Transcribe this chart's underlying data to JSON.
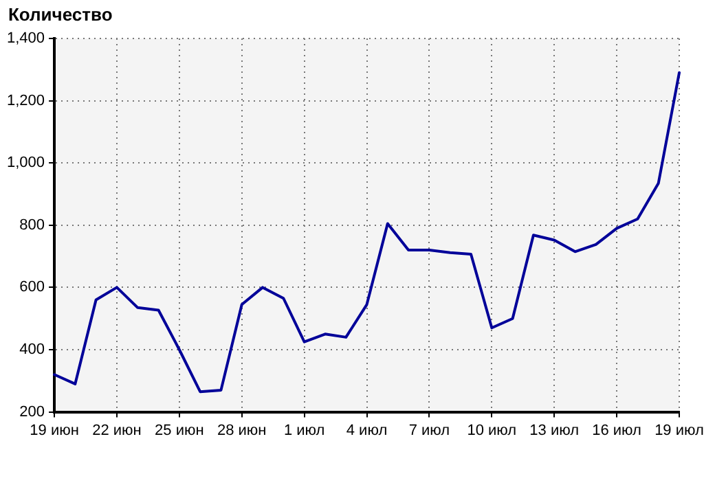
{
  "chart_data": {
    "type": "line",
    "ylabel": "Количество",
    "categories": [
      "19 июн",
      null,
      null,
      "22 июн",
      null,
      null,
      "25 июн",
      null,
      null,
      "28 июн",
      null,
      null,
      "1 июл",
      null,
      null,
      "4 июл",
      null,
      null,
      "7 июл",
      null,
      null,
      "10 июл",
      null,
      null,
      "13 июл",
      null,
      null,
      "16 июл",
      null,
      null,
      "19 июл"
    ],
    "series": [
      {
        "color": "#000099",
        "values": [
          320,
          290,
          560,
          600,
          535,
          527,
          400,
          265,
          270,
          545,
          600,
          565,
          425,
          450,
          440,
          545,
          805,
          720,
          720,
          712,
          707,
          470,
          500,
          768,
          752,
          715,
          738,
          790,
          820,
          935,
          1290
        ]
      }
    ],
    "ylim": [
      200,
      1400
    ],
    "yticks": [
      200,
      400,
      600,
      800,
      {
        "value": 1000,
        "label": "1,000"
      },
      {
        "value": 1200,
        "label": "1,200"
      },
      {
        "value": 1400,
        "label": "1,400"
      }
    ],
    "grid": true,
    "marker": "none",
    "line_style": "solid",
    "legend": false
  }
}
